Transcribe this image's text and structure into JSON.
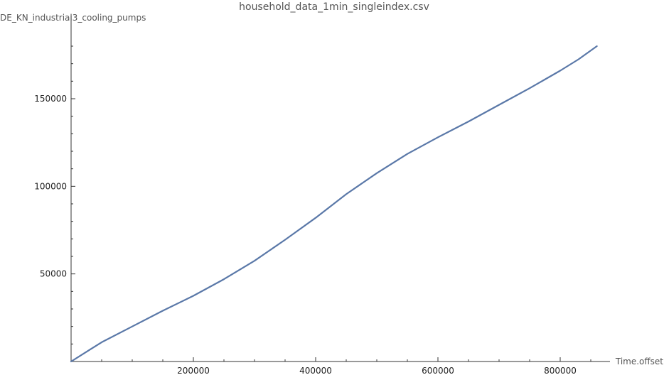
{
  "chart_data": {
    "type": "line",
    "title": "household_data_1min_singleindex.csv",
    "xlabel": "Time.offset",
    "ylabel": "DE_KN_industrial3_cooling_pumps",
    "xlim": [
      0,
      870000
    ],
    "ylim": [
      0,
      190000
    ],
    "x_ticks": [
      200000,
      400000,
      600000,
      800000
    ],
    "x_tick_labels": [
      "200000",
      "400000",
      "600000",
      "800000"
    ],
    "y_ticks": [
      50000,
      100000,
      150000
    ],
    "y_tick_labels": [
      "50000",
      "100000",
      "150000"
    ],
    "grid": false,
    "series": [
      {
        "color": "#5a78a8",
        "x": [
          0,
          50000,
          100000,
          150000,
          200000,
          250000,
          300000,
          350000,
          400000,
          450000,
          500000,
          550000,
          600000,
          650000,
          700000,
          750000,
          800000,
          830000,
          860000
        ],
        "y": [
          0,
          11000,
          20000,
          29000,
          37500,
          47000,
          57500,
          69500,
          82000,
          95500,
          107500,
          118500,
          128000,
          137000,
          146500,
          156000,
          166000,
          172500,
          180000
        ]
      }
    ]
  }
}
